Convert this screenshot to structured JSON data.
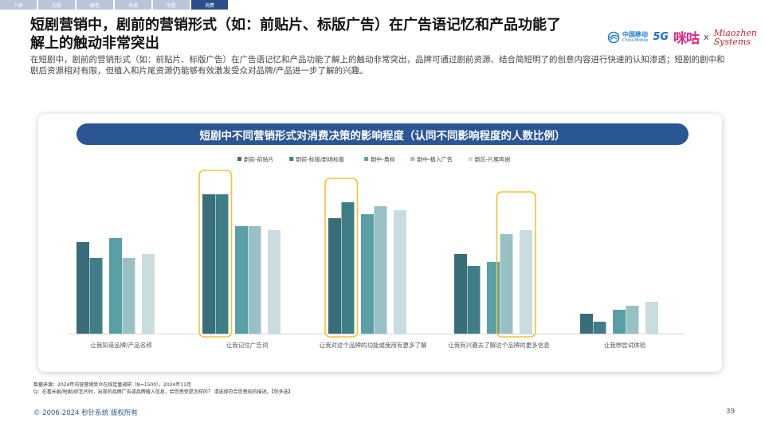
{
  "nav": {
    "tabs": [
      "人群",
      "内容",
      "触性",
      "场景",
      "明星",
      "消费"
    ],
    "active_index": 5
  },
  "title": "短剧营销中，剧前的营销形式（如：前贴片、标版广告）在广告语记忆和产品功能了解上的触动非常突出",
  "subtitle": "在短剧中，剧前的营销形式（如：前贴片、标版广告）在广告语记忆和产品功能了解上的触动非常突出，品牌可通过剧前资源、结合简短明了的创意内容进行快速的认知渗透；短剧的剧中和剧后资源相对有限，但植入和片尾资源仍能够有效激发受众对品牌/产品进一步了解的兴趣。",
  "logos": {
    "china_mobile_cn": "中国移动",
    "china_mobile_en": "China Mobile",
    "fiveg": "5G",
    "migu": "咪咕",
    "x": "x",
    "miaozhen_line1": "Miaozhen",
    "miaozhen_line2": "Systems"
  },
  "banner": "短剧中不同营销形式对消费决策的影响程度（认同不同影响程度的人数比例）",
  "chart_data": {
    "type": "bar",
    "categories": [
      "让我知道品牌/产品名称",
      "让我记住广告词",
      "让我对这个品牌的功能或使用有更多了解",
      "让我有兴趣去了解这个品牌的更多信息",
      "让我想尝试体验"
    ],
    "series": [
      {
        "name": "剧前-前贴片",
        "values": [
          23,
          35,
          29,
          20,
          5
        ],
        "color": "#3a6d7a"
      },
      {
        "name": "剧前-标版/剧场标版",
        "values": [
          19,
          35,
          33,
          17,
          3
        ],
        "color": "#3f7e86"
      },
      {
        "name": "剧中-角标",
        "values": [
          24,
          27,
          30,
          18,
          6
        ],
        "color": "#5a9fa8"
      },
      {
        "name": "剧中-植入广告",
        "values": [
          19,
          27,
          32,
          25,
          7
        ],
        "color": "#98c0c5"
      },
      {
        "name": "剧后-片尾鸣谢",
        "values": [
          20,
          26,
          31,
          26,
          8
        ],
        "color": "#c9dde0"
      }
    ],
    "highlight_groups": [
      1,
      2,
      3
    ],
    "highlight_color": "#f2c330",
    "legend_position": "top",
    "grid": false,
    "ylim": [
      0,
      40
    ]
  },
  "source": {
    "line1": "数据来源：2024年内容营销受众在线定量调研（N=1500），2024年11月",
    "line2": "Q：在看长剧/短剧/综艺片时，出现的品牌广告或品牌植入信息，给您感受是怎样的？ 请选择符合您感知的描述。【列多选】"
  },
  "footer": "© 2006-2024 秒针系统 版权所有",
  "page_number": "39"
}
